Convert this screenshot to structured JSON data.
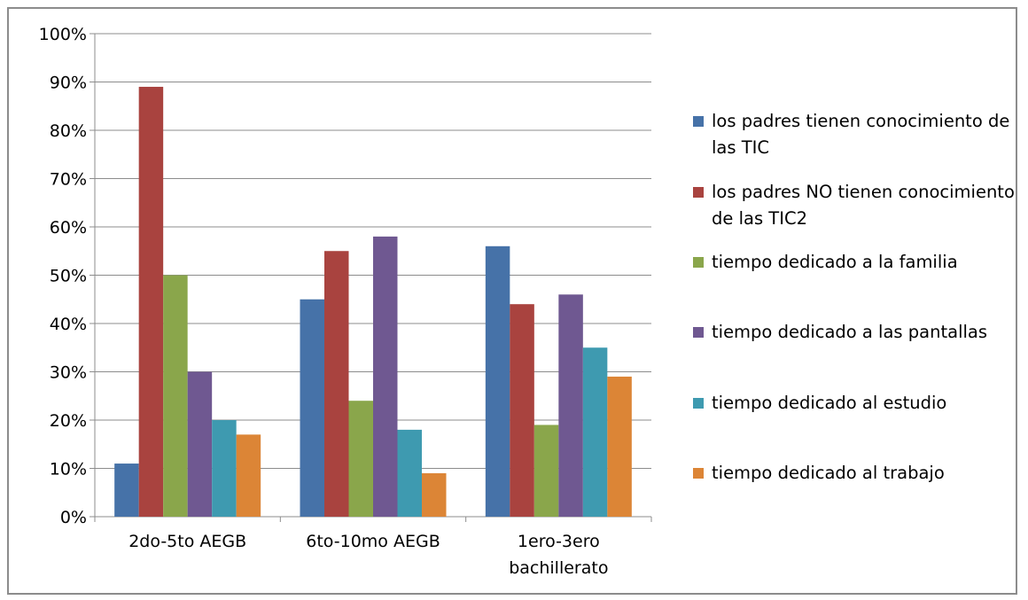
{
  "chart_data": {
    "type": "bar",
    "categories": [
      "2do-5to AEGB",
      "6to-10mo AEGB",
      "1ero-3ero bachillerato"
    ],
    "y_ticks": [
      "0%",
      "10%",
      "20%",
      "30%",
      "40%",
      "50%",
      "60%",
      "70%",
      "80%",
      "90%",
      "100%"
    ],
    "ylim": [
      0,
      100
    ],
    "grid": true,
    "legend_position": "right",
    "series": [
      {
        "name": "los padres tienen conocimiento de las TIC",
        "color": "#4672A8",
        "values": [
          11,
          45,
          56
        ]
      },
      {
        "name": "los padres NO tienen conocimiento de las TIC2",
        "color": "#A9433F",
        "values": [
          89,
          55,
          44
        ]
      },
      {
        "name": "tiempo dedicado a la familia",
        "color": "#8AA64B",
        "values": [
          50,
          24,
          19
        ]
      },
      {
        "name": "tiempo dedicado a las pantallas",
        "color": "#6F5891",
        "values": [
          30,
          58,
          46
        ]
      },
      {
        "name": "tiempo dedicado al estudio",
        "color": "#3E9AB0",
        "values": [
          20,
          18,
          35
        ]
      },
      {
        "name": "tiempo dedicado al trabajo",
        "color": "#DC8536",
        "values": [
          17,
          9,
          29
        ]
      }
    ]
  }
}
